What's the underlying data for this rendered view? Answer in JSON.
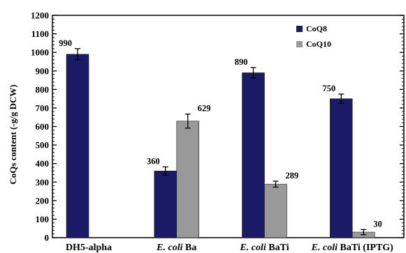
{
  "chart_data": {
    "type": "bar",
    "title": "",
    "ylabel": "CoQs content (-g/g DCW)",
    "xlabel": "",
    "ylim": [
      0,
      1200
    ],
    "y_ticks": [
      0,
      100,
      200,
      300,
      400,
      500,
      600,
      700,
      800,
      900,
      1000,
      1100,
      1200
    ],
    "legend_position": "top-right",
    "categories": [
      {
        "prefix": "",
        "italic": "",
        "rest": "DH5-alpha"
      },
      {
        "prefix": "",
        "italic": "E. coli",
        "rest": " Ba"
      },
      {
        "prefix": "",
        "italic": "E. coli",
        "rest": " BaTi"
      },
      {
        "prefix": "",
        "italic": "E. coli",
        "rest": " BaTi (IPTG)"
      }
    ],
    "series": [
      {
        "name": "CoQ8",
        "color": "#1a1a66",
        "values": [
          990,
          360,
          890,
          750
        ],
        "errors": [
          30,
          22,
          28,
          25
        ],
        "labels": [
          "990",
          "360",
          "890",
          "750"
        ]
      },
      {
        "name": "CoQ10",
        "color": "#999999",
        "values": [
          null,
          629,
          289,
          30
        ],
        "errors": [
          null,
          38,
          16,
          14
        ],
        "labels": [
          "",
          "629",
          "289",
          "30"
        ]
      }
    ]
  }
}
